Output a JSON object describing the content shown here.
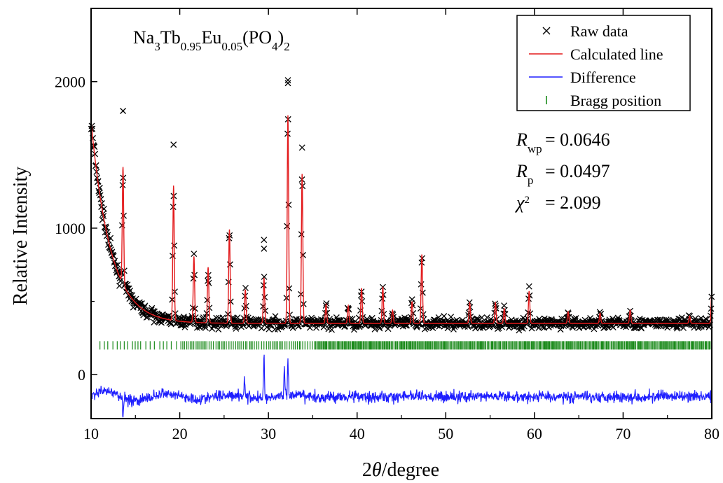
{
  "chart_data": {
    "type": "scatter",
    "title": "Na3Tb0.95Eu0.05(PO4)2",
    "compound": {
      "parts": [
        {
          "t": "Na",
          "sub": false
        },
        {
          "t": "3",
          "sub": true
        },
        {
          "t": "Tb",
          "sub": false
        },
        {
          "t": "0.95",
          "sub": true
        },
        {
          "t": "Eu",
          "sub": false
        },
        {
          "t": "0.05",
          "sub": true
        },
        {
          "t": "(PO",
          "sub": false
        },
        {
          "t": "4",
          "sub": true
        },
        {
          "t": ")",
          "sub": false
        },
        {
          "t": "2",
          "sub": true
        }
      ]
    },
    "xlabel": {
      "prefix": "2",
      "symbol": "θ",
      "suffix": "/degree"
    },
    "ylabel": "Relative Intensity",
    "xlim": [
      10,
      80
    ],
    "ylim": [
      -300,
      2500
    ],
    "xticks": [
      10,
      20,
      30,
      40,
      50,
      60,
      70,
      80
    ],
    "yticks": [
      0,
      1000,
      2000
    ],
    "grid": false,
    "legend_position": "top-right",
    "legend": [
      {
        "label": "Raw data",
        "marker": "×",
        "color": "#000000"
      },
      {
        "label": "Calculated line",
        "marker": "line",
        "color": "#e31a1c"
      },
      {
        "label": "Difference",
        "marker": "line",
        "color": "#1f1fff"
      },
      {
        "label": "Bragg position",
        "marker": "|",
        "color": "#1a8a1a"
      }
    ],
    "annotations": [
      {
        "sym": "R",
        "sub": "wp",
        "sup": "",
        "text": "= 0.0646"
      },
      {
        "sym": "R",
        "sub": "p",
        "sup": "",
        "text": "= 0.0497"
      },
      {
        "sym": "χ",
        "sub": "",
        "sup": "2",
        "text": "= 2.099"
      }
    ],
    "background": {
      "a": 350,
      "b": 1200,
      "tau": 2.2,
      "x0": 10.3
    },
    "peaks": [
      {
        "x": 13.6,
        "h": 800
      },
      {
        "x": 19.3,
        "h": 920
      },
      {
        "x": 21.6,
        "h": 450
      },
      {
        "x": 23.2,
        "h": 380
      },
      {
        "x": 25.6,
        "h": 640
      },
      {
        "x": 27.4,
        "h": 230
      },
      {
        "x": 29.5,
        "h": 310
      },
      {
        "x": 32.2,
        "h": 1420
      },
      {
        "x": 33.8,
        "h": 1020
      },
      {
        "x": 36.5,
        "h": 130
      },
      {
        "x": 39.0,
        "h": 120
      },
      {
        "x": 40.5,
        "h": 240
      },
      {
        "x": 42.9,
        "h": 250
      },
      {
        "x": 44.0,
        "h": 90
      },
      {
        "x": 46.2,
        "h": 150
      },
      {
        "x": 47.3,
        "h": 470
      },
      {
        "x": 52.7,
        "h": 140
      },
      {
        "x": 55.6,
        "h": 140
      },
      {
        "x": 56.6,
        "h": 100
      },
      {
        "x": 59.4,
        "h": 220
      },
      {
        "x": 63.8,
        "h": 80
      },
      {
        "x": 67.4,
        "h": 70
      },
      {
        "x": 70.8,
        "h": 90
      },
      {
        "x": 77.5,
        "h": 50
      },
      {
        "x": 80.0,
        "h": 200
      }
    ],
    "extra_raw_points": [
      {
        "x": 32.2,
        "y": 2010
      },
      {
        "x": 32.2,
        "y": 1990
      },
      {
        "x": 29.5,
        "y": 920
      },
      {
        "x": 29.5,
        "y": 860
      },
      {
        "x": 19.3,
        "y": 1570
      },
      {
        "x": 33.8,
        "y": 1550
      },
      {
        "x": 13.6,
        "y": 1800
      }
    ],
    "bragg_y": 200,
    "difference_offset": -150,
    "difference_spikes": [
      {
        "x": 29.5,
        "y": 130
      },
      {
        "x": 32.2,
        "y": 90
      },
      {
        "x": 31.8,
        "y": 40
      },
      {
        "x": 27.3,
        "y": -20
      },
      {
        "x": 13.6,
        "y": -280
      }
    ],
    "colors": {
      "raw": "#000000",
      "calc": "#e31a1c",
      "diff": "#1f1fff",
      "bragg": "#1a8a1a"
    }
  }
}
